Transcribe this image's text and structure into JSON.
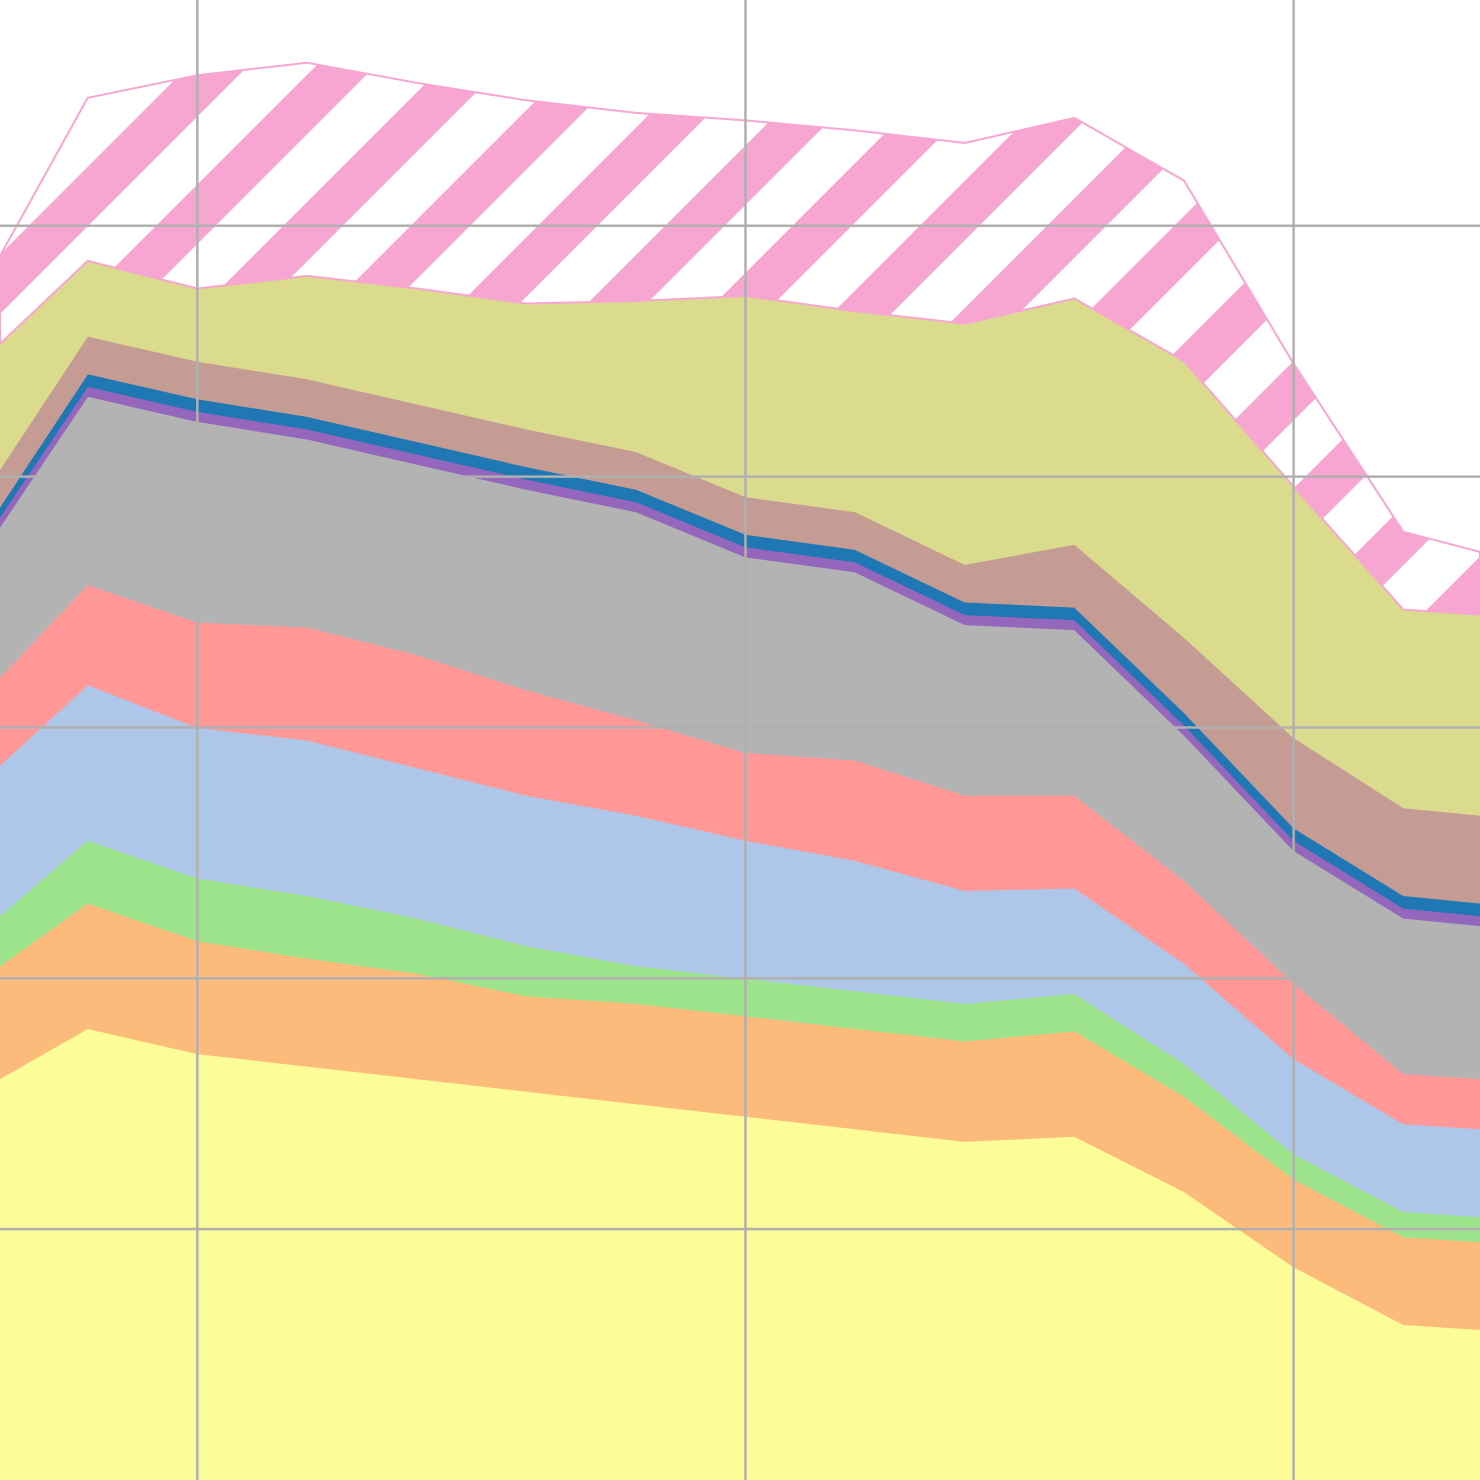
{
  "chart_data": {
    "type": "area",
    "stacked": true,
    "grid": true,
    "x": [
      -0.8,
      0,
      1,
      2,
      3,
      4,
      5,
      6,
      7,
      8,
      9,
      10,
      11,
      12,
      12.7
    ],
    "xlim": [
      -0.8,
      12.7
    ],
    "ylim": [
      0,
      5.9
    ],
    "series": [
      {
        "color": "#fcfc98",
        "values": [
          1.6,
          1.8,
          1.7,
          1.65,
          1.6,
          1.55,
          1.5,
          1.45,
          1.4,
          1.35,
          1.37,
          1.15,
          0.85,
          0.62,
          0.6
        ]
      },
      {
        "color": "#fdbb7b",
        "values": [
          0.45,
          0.5,
          0.45,
          0.43,
          0.42,
          0.38,
          0.4,
          0.4,
          0.4,
          0.4,
          0.42,
          0.38,
          0.35,
          0.35,
          0.35
        ]
      },
      {
        "color": "#9de38c",
        "values": [
          0.2,
          0.25,
          0.25,
          0.25,
          0.22,
          0.2,
          0.15,
          0.15,
          0.15,
          0.15,
          0.15,
          0.13,
          0.1,
          0.1,
          0.1
        ]
      },
      {
        "color": "#aec7e8",
        "values": [
          0.6,
          0.62,
          0.6,
          0.62,
          0.6,
          0.6,
          0.6,
          0.55,
          0.52,
          0.45,
          0.42,
          0.4,
          0.38,
          0.35,
          0.35
        ]
      },
      {
        "color": "#ff9896",
        "values": [
          0.35,
          0.4,
          0.42,
          0.45,
          0.45,
          0.42,
          0.38,
          0.35,
          0.4,
          0.38,
          0.37,
          0.33,
          0.3,
          0.2,
          0.2
        ]
      },
      {
        "color": "#b3b3b3",
        "values": [
          0.6,
          0.75,
          0.8,
          0.75,
          0.76,
          0.8,
          0.83,
          0.78,
          0.75,
          0.68,
          0.66,
          0.58,
          0.53,
          0.62,
          0.61
        ]
      },
      {
        "color": "#9467bd",
        "values": [
          0.04,
          0.04,
          0.04,
          0.04,
          0.04,
          0.04,
          0.04,
          0.04,
          0.04,
          0.04,
          0.04,
          0.04,
          0.04,
          0.04,
          0.04
        ]
      },
      {
        "color": "#1f77b4",
        "values": [
          0.04,
          0.05,
          0.05,
          0.05,
          0.05,
          0.05,
          0.05,
          0.05,
          0.05,
          0.05,
          0.05,
          0.05,
          0.05,
          0.05,
          0.05
        ]
      },
      {
        "color": "#c49c94",
        "values": [
          0.15,
          0.15,
          0.15,
          0.15,
          0.15,
          0.15,
          0.15,
          0.15,
          0.15,
          0.15,
          0.25,
          0.3,
          0.36,
          0.35,
          0.35
        ]
      },
      {
        "color": "#dbdb8d",
        "values": [
          0.5,
          0.3,
          0.29,
          0.41,
          0.46,
          0.5,
          0.6,
          0.8,
          0.8,
          0.96,
          0.98,
          1.1,
          1.0,
          0.79,
          0.8
        ]
      },
      {
        "color": "#f7a6d2",
        "hatch": true,
        "values": [
          0.35,
          0.65,
          0.85,
          0.85,
          0.82,
          0.81,
          0.75,
          0.7,
          0.72,
          0.72,
          0.72,
          0.72,
          0.49,
          0.31,
          0.25
        ]
      }
    ]
  }
}
